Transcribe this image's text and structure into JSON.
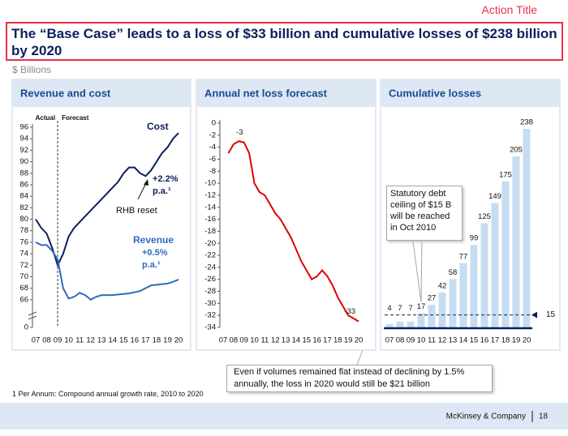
{
  "action_label": "Action Title",
  "title": "The “Base Case” leads to a loss of $33 billion and cumulative losses of $238 billion by 2020",
  "unit": "$ Billions",
  "chart_data": [
    {
      "type": "line",
      "title": "Revenue and cost",
      "phases": [
        "Actual",
        "Forecast"
      ],
      "divider_x": 2009,
      "annotations": [
        "+2.2%",
        "p.a.¹",
        "RHB reset",
        "+0.5%",
        "p.a.¹"
      ],
      "xlim": [
        2007,
        2020
      ],
      "xticks": [
        {
          "value": 2007,
          "label": "07"
        },
        {
          "value": 2008,
          "label": "08"
        },
        {
          "value": 2009,
          "label": "09"
        },
        {
          "value": 2010,
          "label": "10"
        },
        {
          "value": 2011,
          "label": "11"
        },
        {
          "value": 2012,
          "label": "12"
        },
        {
          "value": 2013,
          "label": "13"
        },
        {
          "value": 2014,
          "label": "14"
        },
        {
          "value": 2015,
          "label": "15"
        },
        {
          "value": 2016,
          "label": "16"
        },
        {
          "value": 2017,
          "label": "17"
        },
        {
          "value": 2018,
          "label": "18"
        },
        {
          "value": 2019,
          "label": "19"
        },
        {
          "value": 2020,
          "label": "20"
        }
      ],
      "ylim": [
        0,
        96
      ],
      "axis_break": [
        0,
        64
      ],
      "yticks": [
        0,
        66,
        68,
        70,
        72,
        74,
        76,
        78,
        80,
        82,
        84,
        86,
        88,
        90,
        92,
        94,
        96
      ],
      "x": [
        2007,
        2007.5,
        2008,
        2008.5,
        2009,
        2009.5,
        2010,
        2010.5,
        2011,
        2011.5,
        2012,
        2012.5,
        2013,
        2013.5,
        2014,
        2014.5,
        2015,
        2015.5,
        2016,
        2016.5,
        2017,
        2017.5,
        2018,
        2018.5,
        2019,
        2019.5,
        2020
      ],
      "series": [
        {
          "name": "Cost",
          "color": "#0b1f5c",
          "values": [
            80,
            78.5,
            77.5,
            75,
            72,
            74,
            77,
            78.5,
            79.5,
            80.5,
            81.5,
            82.5,
            83.5,
            84.5,
            85.5,
            86.5,
            88,
            89,
            89,
            88,
            87.5,
            88.5,
            90,
            91.5,
            92.5,
            94,
            95
          ]
        },
        {
          "name": "Revenue",
          "color": "#2f6bbf",
          "values": [
            76,
            75.5,
            75.5,
            74.5,
            73,
            68,
            66.2,
            66.5,
            67.2,
            66.8,
            66,
            66.5,
            66.8,
            66.8,
            66.8,
            66.9,
            67,
            67.1,
            67.3,
            67.5,
            68,
            68.5,
            68.6,
            68.7,
            68.8,
            69.1,
            69.5
          ]
        }
      ]
    },
    {
      "type": "line",
      "title": "Annual net loss forecast",
      "xlim": [
        2007,
        2020
      ],
      "xticks": [
        {
          "value": 2007,
          "label": "07"
        },
        {
          "value": 2008,
          "label": "08"
        },
        {
          "value": 2009,
          "label": "09"
        },
        {
          "value": 2010,
          "label": "10"
        },
        {
          "value": 2011,
          "label": "11"
        },
        {
          "value": 2012,
          "label": "12"
        },
        {
          "value": 2013,
          "label": "13"
        },
        {
          "value": 2014,
          "label": "14"
        },
        {
          "value": 2015,
          "label": "15"
        },
        {
          "value": 2016,
          "label": "16"
        },
        {
          "value": 2017,
          "label": "17"
        },
        {
          "value": 2018,
          "label": "18"
        },
        {
          "value": 2019,
          "label": "19"
        },
        {
          "value": 2020,
          "label": "20"
        }
      ],
      "ylim": [
        -34,
        0
      ],
      "yticks": [
        0,
        -2,
        -4,
        -6,
        -8,
        -10,
        -12,
        -14,
        -16,
        -18,
        -20,
        -22,
        -24,
        -26,
        -28,
        -30,
        -32,
        -34
      ],
      "x": [
        2007.5,
        2008,
        2008.5,
        2009,
        2009.5,
        2010,
        2010.5,
        2011,
        2011.5,
        2012,
        2012.5,
        2013,
        2013.5,
        2014,
        2014.5,
        2015,
        2015.5,
        2016,
        2016.5,
        2017,
        2017.5,
        2018,
        2018.5,
        2019,
        2019.5,
        2020
      ],
      "labeled": [
        2,
        25
      ],
      "series": [
        {
          "name": null,
          "color": "#e00000",
          "values": [
            -5,
            -3.5,
            -3,
            -3.2,
            -5,
            -10,
            -11.5,
            -12,
            -13.5,
            -15,
            -16,
            -17.5,
            -19,
            -21,
            -23,
            -24.5,
            -26,
            -25.5,
            -24.5,
            -25.5,
            -27,
            -29,
            -30.5,
            -32,
            -32.5,
            -33
          ]
        }
      ]
    },
    {
      "type": "bar",
      "title": "Cumulative losses",
      "color": "#c6dcf1",
      "ylim": [
        0,
        240
      ],
      "categories": [
        "07",
        "08",
        "09",
        "10",
        "11",
        "12",
        "13",
        "14",
        "15",
        "16",
        "17",
        "18",
        "19",
        "20"
      ],
      "values": [
        4,
        7,
        7,
        17,
        27,
        42,
        58,
        77,
        99,
        125,
        149,
        175,
        205,
        238
      ],
      "reference_line": 15,
      "callout": "Statutory debt ceiling of $15 B will be reached in Oct 2010"
    }
  ],
  "callout": "Even if volumes remained flat instead of declining by 1.5% annually, the loss in 2020 would still be $21 billion",
  "footnote": "1 Per Annum: Compound annual growth rate, 2010 to 2020",
  "footer": {
    "company": "McKinsey & Company",
    "page": "18"
  }
}
